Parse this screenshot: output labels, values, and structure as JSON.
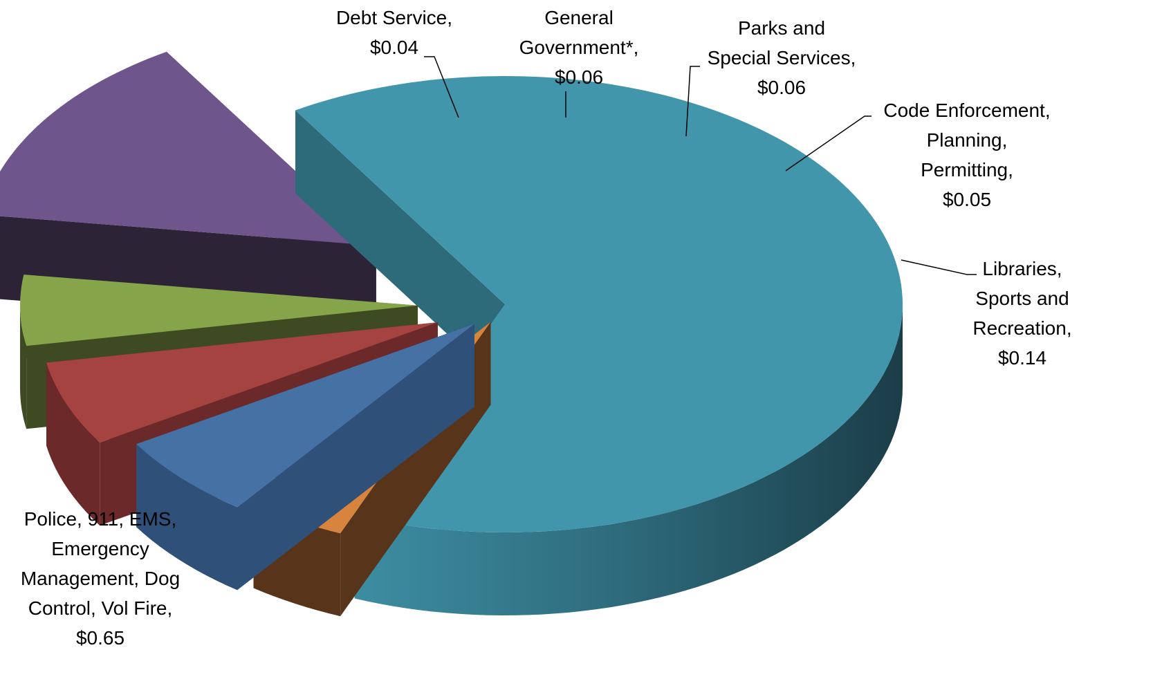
{
  "chart_data": {
    "type": "pie",
    "style": "3d-exploded",
    "title": "",
    "unit": "$",
    "slices": [
      {
        "label_lines": [
          "Police, 911, EMS,",
          "Emergency",
          "Management, Dog",
          "Control, Vol Fire,"
        ],
        "value_text": "$0.65",
        "value": 0.65,
        "color": "#4196ab",
        "side_color": "#2d6b7b"
      },
      {
        "label_lines": [
          "Debt Service,"
        ],
        "value_text": "$0.04",
        "value": 0.04,
        "color": "#d7843f",
        "side_color": "#57341a"
      },
      {
        "label_lines": [
          "General",
          "Government*,"
        ],
        "value_text": "$0.06",
        "value": 0.06,
        "color": "#4671a5",
        "side_color": "#2f5078"
      },
      {
        "label_lines": [
          "Parks and",
          "Special Services,"
        ],
        "value_text": "$0.06",
        "value": 0.06,
        "color": "#a44340",
        "side_color": "#6b2a29"
      },
      {
        "label_lines": [
          "Code Enforcement,",
          "Planning,",
          "Permitting,"
        ],
        "value_text": "$0.05",
        "value": 0.05,
        "color": "#86a44a",
        "side_color": "#3e4a22"
      },
      {
        "label_lines": [
          "Libraries,",
          "Sports and",
          "Recreation,"
        ],
        "value_text": "$0.14",
        "value": 0.14,
        "color": "#6e558b",
        "side_color": "#2c2336"
      }
    ]
  }
}
